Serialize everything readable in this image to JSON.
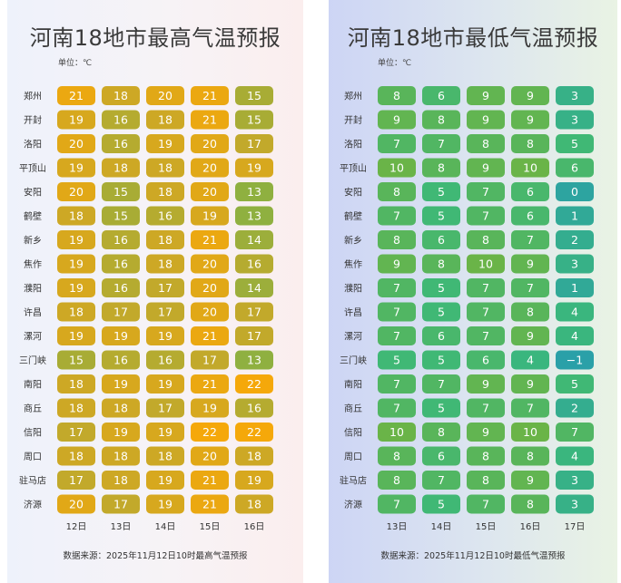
{
  "chart_data": [
    {
      "type": "heatmap",
      "title": "河南18地市最高气温预报",
      "unit": "单位：℃",
      "source": "数据来源：2025年11月12日10时最高气温预报",
      "rows": [
        "郑州",
        "开封",
        "洛阳",
        "平顶山",
        "安阳",
        "鹤壁",
        "新乡",
        "焦作",
        "濮阳",
        "许昌",
        "漯河",
        "三门峡",
        "南阳",
        "商丘",
        "信阳",
        "周口",
        "驻马店",
        "济源"
      ],
      "columns": [
        "12日",
        "13日",
        "14日",
        "15日",
        "16日"
      ],
      "values": [
        [
          21,
          18,
          20,
          21,
          15
        ],
        [
          19,
          16,
          18,
          21,
          15
        ],
        [
          20,
          16,
          19,
          20,
          17
        ],
        [
          19,
          18,
          18,
          20,
          19
        ],
        [
          20,
          15,
          18,
          20,
          13
        ],
        [
          18,
          15,
          16,
          19,
          13
        ],
        [
          19,
          16,
          18,
          21,
          14
        ],
        [
          19,
          16,
          18,
          20,
          16
        ],
        [
          19,
          16,
          17,
          20,
          14
        ],
        [
          18,
          17,
          17,
          20,
          17
        ],
        [
          19,
          19,
          19,
          21,
          17
        ],
        [
          15,
          16,
          16,
          17,
          13
        ],
        [
          18,
          19,
          19,
          21,
          22
        ],
        [
          18,
          18,
          17,
          19,
          16
        ],
        [
          17,
          19,
          19,
          22,
          22
        ],
        [
          18,
          18,
          18,
          20,
          18
        ],
        [
          17,
          18,
          19,
          21,
          19
        ],
        [
          20,
          17,
          19,
          21,
          18
        ]
      ],
      "color_scale": {
        "min": 13,
        "max": 22,
        "low_color": "#8fb040",
        "mid_color": "#c8a828",
        "high_color": "#f5a80a"
      }
    },
    {
      "type": "heatmap",
      "title": "河南18地市最低气温预报",
      "unit": "单位：℃",
      "source": "数据来源：2025年11月12日10时最低气温预报",
      "rows": [
        "郑州",
        "开封",
        "洛阳",
        "平顶山",
        "安阳",
        "鹤壁",
        "新乡",
        "焦作",
        "濮阳",
        "许昌",
        "漯河",
        "三门峡",
        "南阳",
        "商丘",
        "信阳",
        "周口",
        "驻马店",
        "济源"
      ],
      "columns": [
        "13日",
        "14日",
        "15日",
        "16日",
        "17日"
      ],
      "values": [
        [
          8,
          6,
          9,
          9,
          3
        ],
        [
          9,
          8,
          9,
          9,
          3
        ],
        [
          7,
          7,
          8,
          8,
          5
        ],
        [
          10,
          8,
          9,
          10,
          6
        ],
        [
          8,
          5,
          7,
          6,
          0
        ],
        [
          7,
          5,
          7,
          6,
          1
        ],
        [
          8,
          6,
          8,
          7,
          2
        ],
        [
          9,
          8,
          10,
          9,
          3
        ],
        [
          7,
          5,
          7,
          7,
          1
        ],
        [
          7,
          5,
          7,
          8,
          4
        ],
        [
          7,
          6,
          7,
          9,
          4
        ],
        [
          5,
          5,
          6,
          4,
          -1
        ],
        [
          7,
          7,
          9,
          9,
          5
        ],
        [
          7,
          5,
          7,
          7,
          2
        ],
        [
          10,
          8,
          9,
          10,
          7
        ],
        [
          8,
          6,
          8,
          8,
          4
        ],
        [
          8,
          7,
          8,
          9,
          3
        ],
        [
          7,
          5,
          7,
          8,
          3
        ]
      ],
      "color_scale": {
        "min": -1,
        "max": 10,
        "low_color": "#2aa0a8",
        "mid_color": "#3cb87a",
        "high_color": "#6ab448"
      }
    }
  ]
}
